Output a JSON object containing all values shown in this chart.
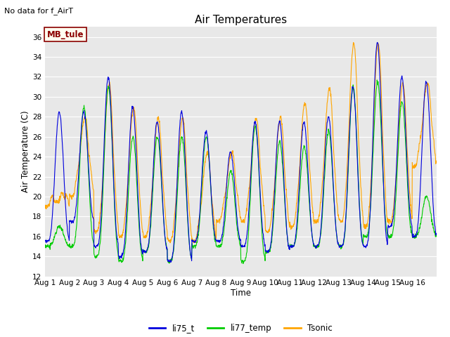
{
  "title": "Air Temperatures",
  "subtitle": "No data for f_AirT",
  "xlabel": "Time",
  "ylabel": "Air Temperature (C)",
  "ylim": [
    12,
    37
  ],
  "yticks": [
    12,
    14,
    16,
    18,
    20,
    22,
    24,
    26,
    28,
    30,
    32,
    34,
    36
  ],
  "plot_bg_color": "#e8e8e8",
  "fig_bg_color": "#ffffff",
  "legend_label": "MB_tule",
  "legend_box_facecolor": "#fffff0",
  "legend_box_edgecolor": "#8b0000",
  "colors": {
    "li75_t": "#0000dd",
    "li77_temp": "#00cc00",
    "Tsonic": "#ffa500"
  },
  "series_labels": [
    "li75_t",
    "li77_temp",
    "Tsonic"
  ],
  "total_days": 16,
  "pts_per_day": 96,
  "day_labels": [
    "Aug 1",
    "Aug 2",
    "Aug 3",
    "Aug 4",
    "Aug 5",
    "Aug 6",
    "Aug 7",
    "Aug 8",
    "Aug 9",
    "Aug 10",
    "Aug 11",
    "Aug 12",
    "Aug 13",
    "Aug 14",
    "Aug 15",
    "Aug 16"
  ],
  "daily_max_blue": [
    28.5,
    28.5,
    32.0,
    29.0,
    27.5,
    28.5,
    26.5,
    24.5,
    27.5,
    27.5,
    27.5,
    28.0,
    31.0,
    35.5,
    32.0,
    31.5
  ],
  "daily_min_blue": [
    15.5,
    17.5,
    15.0,
    14.0,
    14.5,
    13.5,
    15.5,
    15.5,
    15.0,
    14.5,
    15.0,
    15.0,
    15.0,
    15.0,
    17.0,
    16.0
  ],
  "daily_max_green": [
    17.0,
    29.0,
    31.0,
    26.0,
    26.0,
    26.0,
    26.0,
    22.5,
    27.0,
    25.5,
    25.0,
    26.5,
    31.0,
    31.5,
    29.5,
    20.0
  ],
  "daily_min_green": [
    15.0,
    15.0,
    14.0,
    13.5,
    14.5,
    13.5,
    15.0,
    15.0,
    13.5,
    14.5,
    15.0,
    15.0,
    15.0,
    16.0,
    16.0,
    16.0
  ],
  "daily_max_orange": [
    19.5,
    27.5,
    31.0,
    28.5,
    27.5,
    27.5,
    24.0,
    24.0,
    27.5,
    27.5,
    29.0,
    30.5,
    35.0,
    35.0,
    31.0,
    31.0
  ],
  "daily_min_orange": [
    19.0,
    20.0,
    16.5,
    16.0,
    16.0,
    15.5,
    15.5,
    17.5,
    17.5,
    16.5,
    17.0,
    17.5,
    17.5,
    17.0,
    17.5,
    23.0
  ],
  "peak_hour_blue": 14.0,
  "peak_hour_green": 14.2,
  "peak_hour_orange": 14.5,
  "min_hour_orange": 7.0,
  "sharpness": 3.5
}
